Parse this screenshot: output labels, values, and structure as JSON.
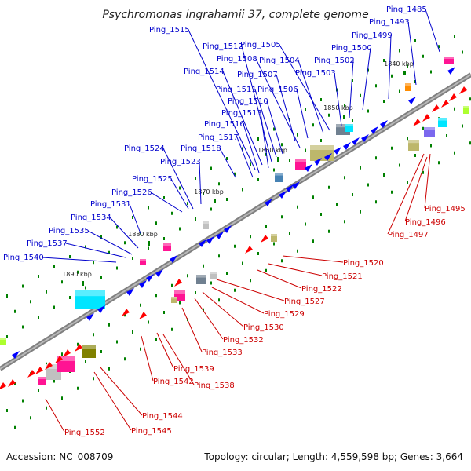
{
  "title": "Psychromonas ingrahamii 37, complete genome",
  "footer": {
    "accession": "Accession: NC_008709",
    "summary": "Topology: circular; Length: 4,559,598 bp; Genes: 3,664"
  },
  "colors": {
    "backbone": "#808080",
    "forward_gene": "#0000ff",
    "reverse_gene": "#ff0000",
    "forward_label": "#0000cc",
    "reverse_label": "#cc0000",
    "tick": "#008000",
    "cds_palette": [
      "#00e5ff",
      "#bdb76b",
      "#ff1493",
      "#4682b4",
      "#7b68ee",
      "#ff8c00",
      "#808000",
      "#708090",
      "#adff2f",
      "#c0c0c0"
    ]
  },
  "kbp_markers": [
    "1840 kbp",
    "1850 kbp",
    "1860 kbp",
    "1870 kbp",
    "1880 kbp",
    "1890 kbp"
  ],
  "forward_labels": [
    "Ping_1485",
    "Ping_1493",
    "Ping_1499",
    "Ping_1500",
    "Ping_1502",
    "Ping_1503",
    "Ping_1504",
    "Ping_1505",
    "Ping_1506",
    "Ping_1507",
    "Ping_1508",
    "Ping_1510",
    "Ping_1511",
    "Ping_1512",
    "Ping_1513",
    "Ping_1514",
    "Ping_1515",
    "Ping_1516",
    "Ping_1517",
    "Ping_1518",
    "Ping_1523",
    "Ping_1524",
    "Ping_1525",
    "Ping_1526",
    "Ping_1531",
    "Ping_1534",
    "Ping_1535",
    "Ping_1537",
    "Ping_1540"
  ],
  "reverse_labels": [
    "Ping_1495",
    "Ping_1496",
    "Ping_1497",
    "Ping_1520",
    "Ping_1521",
    "Ping_1522",
    "Ping_1527",
    "Ping_1529",
    "Ping_1530",
    "Ping_1532",
    "Ping_1533",
    "Ping_1539",
    "Ping_1538",
    "Ping_1542",
    "Ping_1544",
    "Ping_1545",
    "Ping_1552"
  ]
}
